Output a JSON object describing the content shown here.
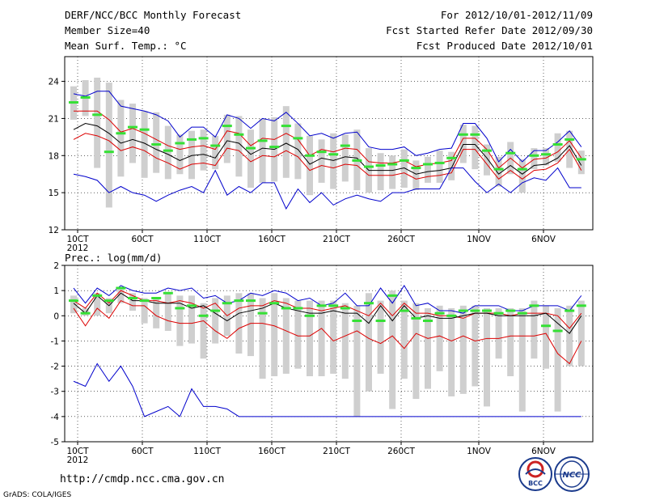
{
  "header": {
    "title": "DERF/NCC/BCC Monthly Forecast",
    "member_size": "Member Size=40",
    "variable": "Mean Surf. Temp.: °C",
    "period": "For 2012/10/01-2012/11/09",
    "started": "Fcst Started Refer Date 2012/09/30",
    "produced": "Fcst Produced Date 2012/10/01"
  },
  "footer": {
    "url": "http://cmdp.ncc.cma.gov.cn",
    "credit": "GrADS: COLA/IGES",
    "logo_bcc": "BCC",
    "logo_ncc": "NCC"
  },
  "colors": {
    "box": "#cfcfcf",
    "green": "#35e035",
    "red": "#dd0000",
    "blue": "#0000cc",
    "black": "#000000"
  },
  "chart_data": [
    {
      "type": "line",
      "name": "temperature",
      "title": "Mean Surf. Temp.: °C",
      "ylim": [
        12,
        26
      ],
      "yticks": [
        12,
        15,
        18,
        21,
        24
      ],
      "ytick_labels": [
        "12",
        "15",
        "18",
        "21",
        "24"
      ],
      "xtick_days": [
        1,
        6,
        11,
        16,
        21,
        26,
        32,
        37
      ],
      "xtick_labels": [
        "10CT",
        "60CT",
        "110CT",
        "160CT",
        "210CT",
        "260CT",
        "1NOV",
        "6NOV"
      ],
      "year_label": "2012",
      "days": 40,
      "series": [
        {
          "name": "max",
          "color": "blue",
          "values": [
            23.0,
            22.8,
            23.2,
            23.2,
            22.0,
            21.8,
            21.6,
            21.3,
            20.8,
            19.5,
            20.3,
            20.3,
            19.5,
            21.3,
            21.0,
            20.2,
            21.0,
            20.8,
            21.5,
            20.6,
            19.6,
            19.8,
            19.4,
            19.8,
            19.9,
            18.7,
            18.5,
            18.5,
            18.7,
            18.0,
            18.2,
            18.5,
            18.6,
            20.6,
            20.6,
            19.4,
            17.5,
            18.5,
            17.5,
            18.4,
            18.4,
            19.1,
            20.0,
            18.7
          ]
        },
        {
          "name": "ens_max",
          "color": "red",
          "values": [
            21.6,
            21.6,
            21.6,
            20.9,
            19.9,
            20.2,
            19.8,
            19.3,
            18.8,
            18.5,
            18.7,
            18.8,
            18.5,
            20.0,
            19.8,
            18.8,
            19.4,
            19.3,
            19.8,
            19.3,
            18.0,
            18.5,
            18.3,
            18.6,
            18.5,
            17.5,
            17.4,
            17.4,
            17.6,
            17.1,
            17.3,
            17.4,
            17.6,
            19.4,
            19.4,
            18.5,
            17.0,
            17.8,
            17.0,
            17.7,
            17.8,
            18.3,
            19.2,
            17.8
          ]
        },
        {
          "name": "mean",
          "color": "black",
          "values": [
            20.1,
            20.6,
            20.4,
            19.8,
            19.0,
            19.3,
            19.0,
            18.5,
            18.1,
            17.6,
            18.0,
            18.1,
            17.8,
            19.2,
            19.0,
            18.1,
            18.6,
            18.5,
            19.0,
            18.5,
            17.3,
            17.8,
            17.6,
            17.9,
            17.8,
            16.8,
            16.8,
            16.8,
            17.0,
            16.5,
            16.7,
            16.8,
            17.0,
            18.9,
            18.9,
            17.8,
            16.5,
            17.2,
            16.5,
            17.2,
            17.3,
            17.8,
            18.8,
            17.2
          ]
        },
        {
          "name": "ens_min",
          "color": "red",
          "values": [
            19.3,
            19.8,
            19.6,
            19.2,
            18.4,
            18.7,
            18.4,
            17.8,
            17.4,
            16.9,
            17.3,
            17.4,
            17.2,
            18.6,
            18.4,
            17.5,
            18.0,
            17.9,
            18.4,
            17.9,
            16.8,
            17.2,
            17.0,
            17.3,
            17.2,
            16.4,
            16.4,
            16.4,
            16.6,
            16.1,
            16.3,
            16.4,
            16.6,
            18.5,
            18.5,
            17.3,
            16.1,
            16.8,
            16.1,
            16.8,
            16.9,
            17.4,
            18.5,
            16.8
          ]
        },
        {
          "name": "min",
          "color": "blue",
          "values": [
            16.5,
            16.3,
            16.0,
            15.0,
            15.5,
            15.0,
            14.8,
            14.3,
            14.8,
            15.2,
            15.5,
            15.0,
            16.8,
            14.8,
            15.5,
            15.0,
            15.8,
            15.8,
            13.7,
            15.3,
            14.2,
            15.0,
            14.0,
            14.5,
            14.8,
            14.5,
            14.3,
            15.0,
            15.0,
            15.3,
            15.3,
            15.3,
            17.0,
            17.0,
            15.9,
            15.0,
            15.7,
            15.0,
            15.8,
            16.2,
            16.0,
            17.0,
            15.4,
            15.4
          ]
        }
      ],
      "observed_green": [
        22.3,
        22.7,
        21.3,
        18.3,
        19.8,
        20.3,
        20.1,
        18.9,
        18.4,
        19.0,
        19.3,
        19.4,
        18.8,
        20.4,
        19.7,
        18.6,
        19.2,
        18.7,
        20.4,
        19.4,
        18.0,
        18.3,
        18.1,
        18.8,
        17.6,
        17.1,
        17.2,
        17.3,
        17.6,
        17.0,
        17.3,
        17.4,
        17.8,
        19.7,
        19.7,
        18.4,
        16.9,
        18.2,
        16.9,
        18.0,
        18.1,
        18.9,
        19.3,
        17.7
      ],
      "box_high": [
        23.6,
        24.1,
        24.3,
        23.9,
        22.5,
        22.2,
        21.6,
        21.5,
        20.4,
        19.7,
        20.0,
        20.1,
        19.6,
        21.3,
        21.2,
        20.1,
        21.0,
        21.1,
        22.0,
        20.6,
        19.6,
        19.3,
        19.8,
        19.7,
        20.1,
        18.6,
        18.2,
        18.0,
        18.5,
        17.6,
        17.9,
        18.4,
        18.3,
        20.5,
        20.4,
        18.9,
        17.9,
        19.1,
        17.7,
        18.6,
        18.6,
        19.8,
        20.0,
        18.4
      ],
      "box_low": [
        20.9,
        21.2,
        17.0,
        13.8,
        16.3,
        17.4,
        16.2,
        16.6,
        16.1,
        16.5,
        16.1,
        16.8,
        16.9,
        17.4,
        16.3,
        15.4,
        15.8,
        15.9,
        16.2,
        16.1,
        14.8,
        15.8,
        15.3,
        15.9,
        15.2,
        15.0,
        15.2,
        15.3,
        15.4,
        15.2,
        15.8,
        15.8,
        16.0,
        17.4,
        16.9,
        16.4,
        15.5,
        16.5,
        15.0,
        16.9,
        17.2,
        17.5,
        17.0,
        16.5
      ]
    },
    {
      "type": "line",
      "name": "precipitation",
      "title": "Prec.: log(mm/d)",
      "ylim": [
        -5,
        2
      ],
      "yticks": [
        -5,
        -4,
        -3,
        -2,
        -1,
        0,
        1,
        2
      ],
      "ytick_labels": [
        "-5",
        "-4",
        "-3",
        "-2",
        "-1",
        "0",
        "1",
        "2"
      ],
      "xtick_days": [
        1,
        6,
        11,
        16,
        21,
        26,
        32,
        37
      ],
      "xtick_labels": [
        "10CT",
        "60CT",
        "110CT",
        "160CT",
        "210CT",
        "260CT",
        "1NOV",
        "6NOV"
      ],
      "year_label": "2012",
      "days": 40,
      "series": [
        {
          "name": "max",
          "color": "blue",
          "values": [
            1.1,
            0.5,
            1.1,
            0.8,
            1.2,
            1.0,
            0.9,
            0.9,
            1.1,
            1.0,
            1.1,
            0.7,
            0.8,
            0.5,
            0.6,
            0.9,
            0.8,
            1.0,
            0.9,
            0.6,
            0.7,
            0.4,
            0.5,
            0.9,
            0.4,
            0.4,
            1.1,
            0.5,
            1.2,
            0.4,
            0.5,
            0.2,
            0.2,
            0.1,
            0.4,
            0.4,
            0.4,
            0.2,
            0.2,
            0.4,
            0.4,
            0.4,
            0.2,
            0.8
          ]
        },
        {
          "name": "ens_max",
          "color": "red",
          "values": [
            0.6,
            0.3,
            0.9,
            0.5,
            1.0,
            0.8,
            0.6,
            0.6,
            0.5,
            0.6,
            0.5,
            0.3,
            0.5,
            0.0,
            0.3,
            0.4,
            0.4,
            0.6,
            0.5,
            0.3,
            0.3,
            0.2,
            0.3,
            0.4,
            0.2,
            0.0,
            0.5,
            0.0,
            0.5,
            0.1,
            0.1,
            0.0,
            0.0,
            -0.1,
            0.1,
            0.1,
            0.1,
            0.0,
            0.1,
            0.1,
            0.1,
            0.0,
            -0.5,
            0.1
          ]
        },
        {
          "name": "mean",
          "color": "black",
          "values": [
            0.5,
            0.1,
            0.8,
            0.4,
            0.9,
            0.6,
            0.6,
            0.5,
            0.5,
            0.5,
            0.3,
            0.4,
            0.1,
            -0.2,
            0.1,
            0.2,
            0.3,
            0.5,
            0.3,
            0.2,
            0.1,
            0.1,
            0.2,
            0.1,
            0.1,
            -0.3,
            0.4,
            -0.2,
            0.4,
            -0.1,
            0.0,
            -0.1,
            -0.1,
            0.0,
            0.1,
            0.1,
            0.0,
            0.0,
            0.0,
            0.0,
            0.1,
            -0.3,
            -0.7,
            0.0
          ]
        },
        {
          "name": "ens_min",
          "color": "red",
          "values": [
            0.3,
            -0.4,
            0.3,
            -0.1,
            0.6,
            0.4,
            0.4,
            0.0,
            -0.2,
            -0.3,
            -0.3,
            -0.2,
            -0.6,
            -0.9,
            -0.5,
            -0.3,
            -0.3,
            -0.4,
            -0.6,
            -0.8,
            -0.8,
            -0.5,
            -1.0,
            -0.8,
            -0.6,
            -0.9,
            -1.1,
            -0.8,
            -1.3,
            -0.7,
            -0.9,
            -0.8,
            -1.0,
            -0.8,
            -1.0,
            -0.9,
            -0.9,
            -0.8,
            -0.8,
            -0.8,
            -0.7,
            -1.5,
            -1.9,
            -1.0
          ]
        },
        {
          "name": "min",
          "color": "blue",
          "values": [
            -2.6,
            -2.8,
            -1.9,
            -2.6,
            -2.0,
            -2.8,
            -4.0,
            -3.8,
            -3.6,
            -4.0,
            -2.9,
            -3.6,
            -3.6,
            -3.7,
            -4.0,
            -4.0,
            -4.0,
            -4.0,
            -4.0,
            -4.0,
            -4.0,
            -4.0,
            -4.0,
            -4.0,
            -4.0,
            -4.0,
            -4.0,
            -4.0,
            -4.0,
            -4.0,
            -4.0,
            -4.0,
            -4.0,
            -4.0,
            -4.0,
            -4.0,
            -4.0,
            -4.0,
            -4.0,
            -4.0,
            -4.0,
            -4.0,
            -4.0,
            -4.0
          ]
        }
      ],
      "observed_green": [
        0.6,
        0.1,
        0.8,
        0.6,
        1.1,
        0.7,
        0.6,
        0.7,
        0.9,
        0.3,
        0.4,
        0.0,
        0.2,
        0.5,
        0.6,
        0.6,
        0.1,
        0.5,
        0.3,
        0.3,
        0.0,
        0.4,
        0.4,
        0.3,
        -0.2,
        0.5,
        -0.2,
        0.8,
        0.2,
        -0.1,
        -0.2,
        0.1,
        0.0,
        0.2,
        0.2,
        0.2,
        0.1,
        0.2,
        0.1,
        0.4,
        -0.4,
        -0.6,
        0.2,
        0.4
      ],
      "box_high": [
        0.8,
        0.3,
        0.9,
        0.7,
        1.1,
        0.9,
        0.7,
        0.7,
        0.9,
        0.8,
        0.8,
        0.5,
        0.7,
        0.8,
        0.9,
        0.9,
        0.7,
        0.9,
        0.7,
        0.6,
        0.6,
        0.6,
        0.6,
        0.5,
        0.4,
        0.9,
        0.6,
        1.0,
        0.6,
        0.5,
        0.3,
        0.4,
        0.3,
        0.4,
        0.4,
        0.3,
        0.3,
        0.3,
        0.3,
        0.6,
        0.4,
        0.3,
        0.4,
        0.6
      ],
      "box_low": [
        0.1,
        0.0,
        0.0,
        0.1,
        0.5,
        0.2,
        -0.3,
        -0.5,
        -0.6,
        -1.2,
        -1.1,
        -1.7,
        -1.1,
        -0.8,
        -1.5,
        -1.6,
        -2.5,
        -2.4,
        -2.3,
        -2.1,
        -2.4,
        -2.4,
        -2.3,
        -2.5,
        -4.0,
        -3.0,
        -2.3,
        -3.7,
        -2.5,
        -3.3,
        -2.9,
        -2.2,
        -3.2,
        -3.1,
        -2.8,
        -3.6,
        -1.7,
        -2.4,
        -3.8,
        -1.7,
        -2.1,
        -3.8,
        -2.0,
        -2.0
      ]
    }
  ]
}
